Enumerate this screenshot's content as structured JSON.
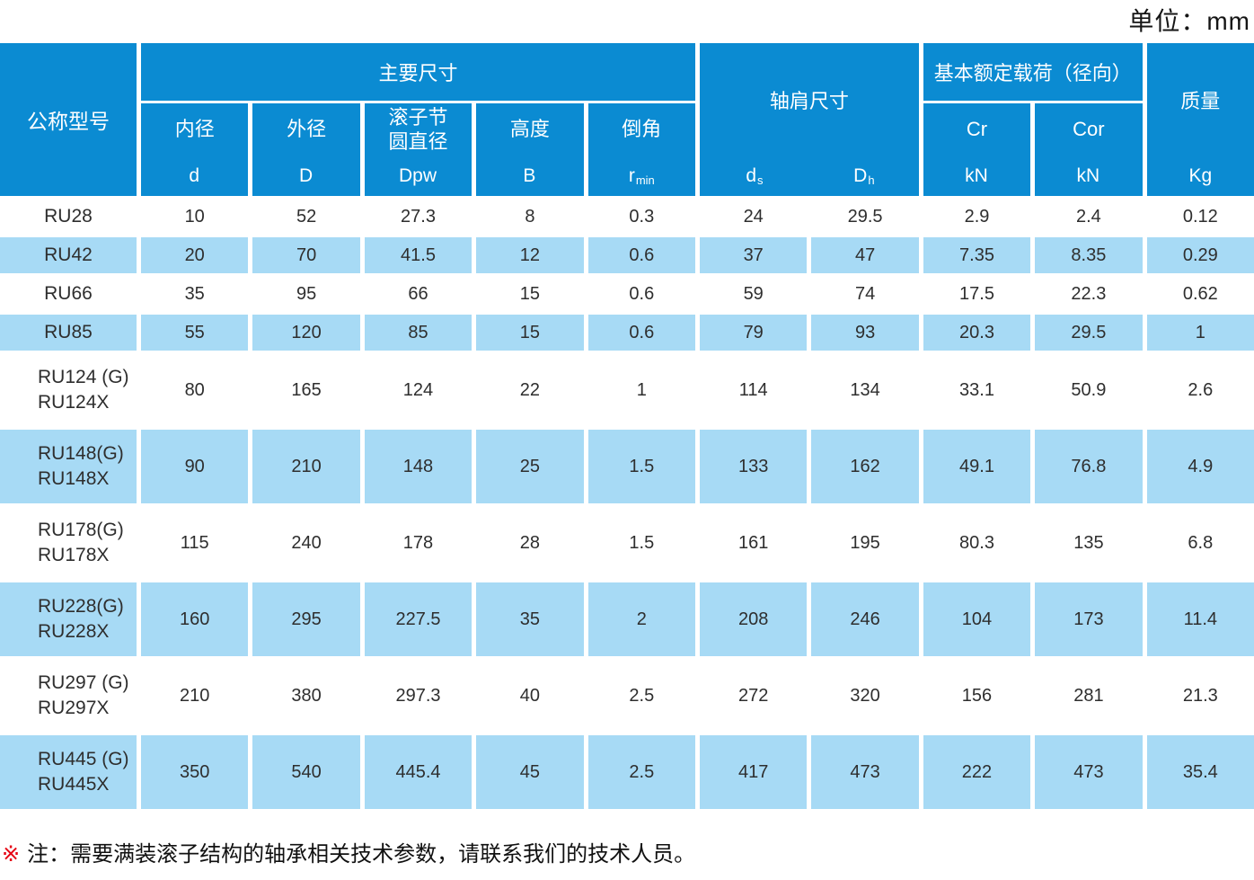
{
  "unit_label": "单位：mm",
  "colors": {
    "header_blue": "#0b8bd2",
    "row_stripe_blue": "#a7daf5",
    "note_marker_red": "#e60012"
  },
  "table": {
    "header": {
      "model": "公称型号",
      "main_dims": "主要尺寸",
      "shoulder": "轴肩尺寸",
      "load": "基本额定载荷（径向）",
      "mass": "质量",
      "mass_symbol": "Kg",
      "sub": [
        {
          "name": "内径",
          "base": "d",
          "sub": ""
        },
        {
          "name": "外径",
          "base": "D",
          "sub": ""
        },
        {
          "name": "滚子节圆直径",
          "base": "Dpw",
          "sub": ""
        },
        {
          "name": "高度",
          "base": "B",
          "sub": ""
        },
        {
          "name": "倒角",
          "base": "r",
          "sub": "min"
        },
        {
          "name": "Cr",
          "base": "kN",
          "sub": ""
        },
        {
          "name": "Cor",
          "base": "kN",
          "sub": ""
        }
      ],
      "shoulder_symbols": [
        {
          "base": "d",
          "sub": "s"
        },
        {
          "base": "D",
          "sub": "h"
        }
      ]
    },
    "rows": [
      {
        "model": [
          "RU28"
        ],
        "values": [
          "10",
          "52",
          "27.3",
          "8",
          "0.3",
          "24",
          "29.5",
          "2.9",
          "2.4",
          "0.12"
        ]
      },
      {
        "model": [
          "RU42"
        ],
        "values": [
          "20",
          "70",
          "41.5",
          "12",
          "0.6",
          "37",
          "47",
          "7.35",
          "8.35",
          "0.29"
        ]
      },
      {
        "model": [
          "RU66"
        ],
        "values": [
          "35",
          "95",
          "66",
          "15",
          "0.6",
          "59",
          "74",
          "17.5",
          "22.3",
          "0.62"
        ]
      },
      {
        "model": [
          "RU85"
        ],
        "values": [
          "55",
          "120",
          "85",
          "15",
          "0.6",
          "79",
          "93",
          "20.3",
          "29.5",
          "1"
        ]
      },
      {
        "model": [
          "RU124 (G)",
          "RU124X"
        ],
        "values": [
          "80",
          "165",
          "124",
          "22",
          "1",
          "114",
          "134",
          "33.1",
          "50.9",
          "2.6"
        ]
      },
      {
        "model": [
          "RU148(G)",
          "RU148X"
        ],
        "values": [
          "90",
          "210",
          "148",
          "25",
          "1.5",
          "133",
          "162",
          "49.1",
          "76.8",
          "4.9"
        ]
      },
      {
        "model": [
          "RU178(G)",
          "RU178X"
        ],
        "values": [
          "115",
          "240",
          "178",
          "28",
          "1.5",
          "161",
          "195",
          "80.3",
          "135",
          "6.8"
        ]
      },
      {
        "model": [
          "RU228(G)",
          "RU228X"
        ],
        "values": [
          "160",
          "295",
          "227.5",
          "35",
          "2",
          "208",
          "246",
          "104",
          "173",
          "11.4"
        ]
      },
      {
        "model": [
          "RU297 (G)",
          "RU297X"
        ],
        "values": [
          "210",
          "380",
          "297.3",
          "40",
          "2.5",
          "272",
          "320",
          "156",
          "281",
          "21.3"
        ]
      },
      {
        "model": [
          "RU445 (G)",
          "RU445X"
        ],
        "values": [
          "350",
          "540",
          "445.4",
          "45",
          "2.5",
          "417",
          "473",
          "222",
          "473",
          "35.4"
        ]
      }
    ]
  },
  "note": {
    "marker": "※",
    "text": "注：需要满装滚子结构的轴承相关技术参数，请联系我们的技术人员。"
  }
}
